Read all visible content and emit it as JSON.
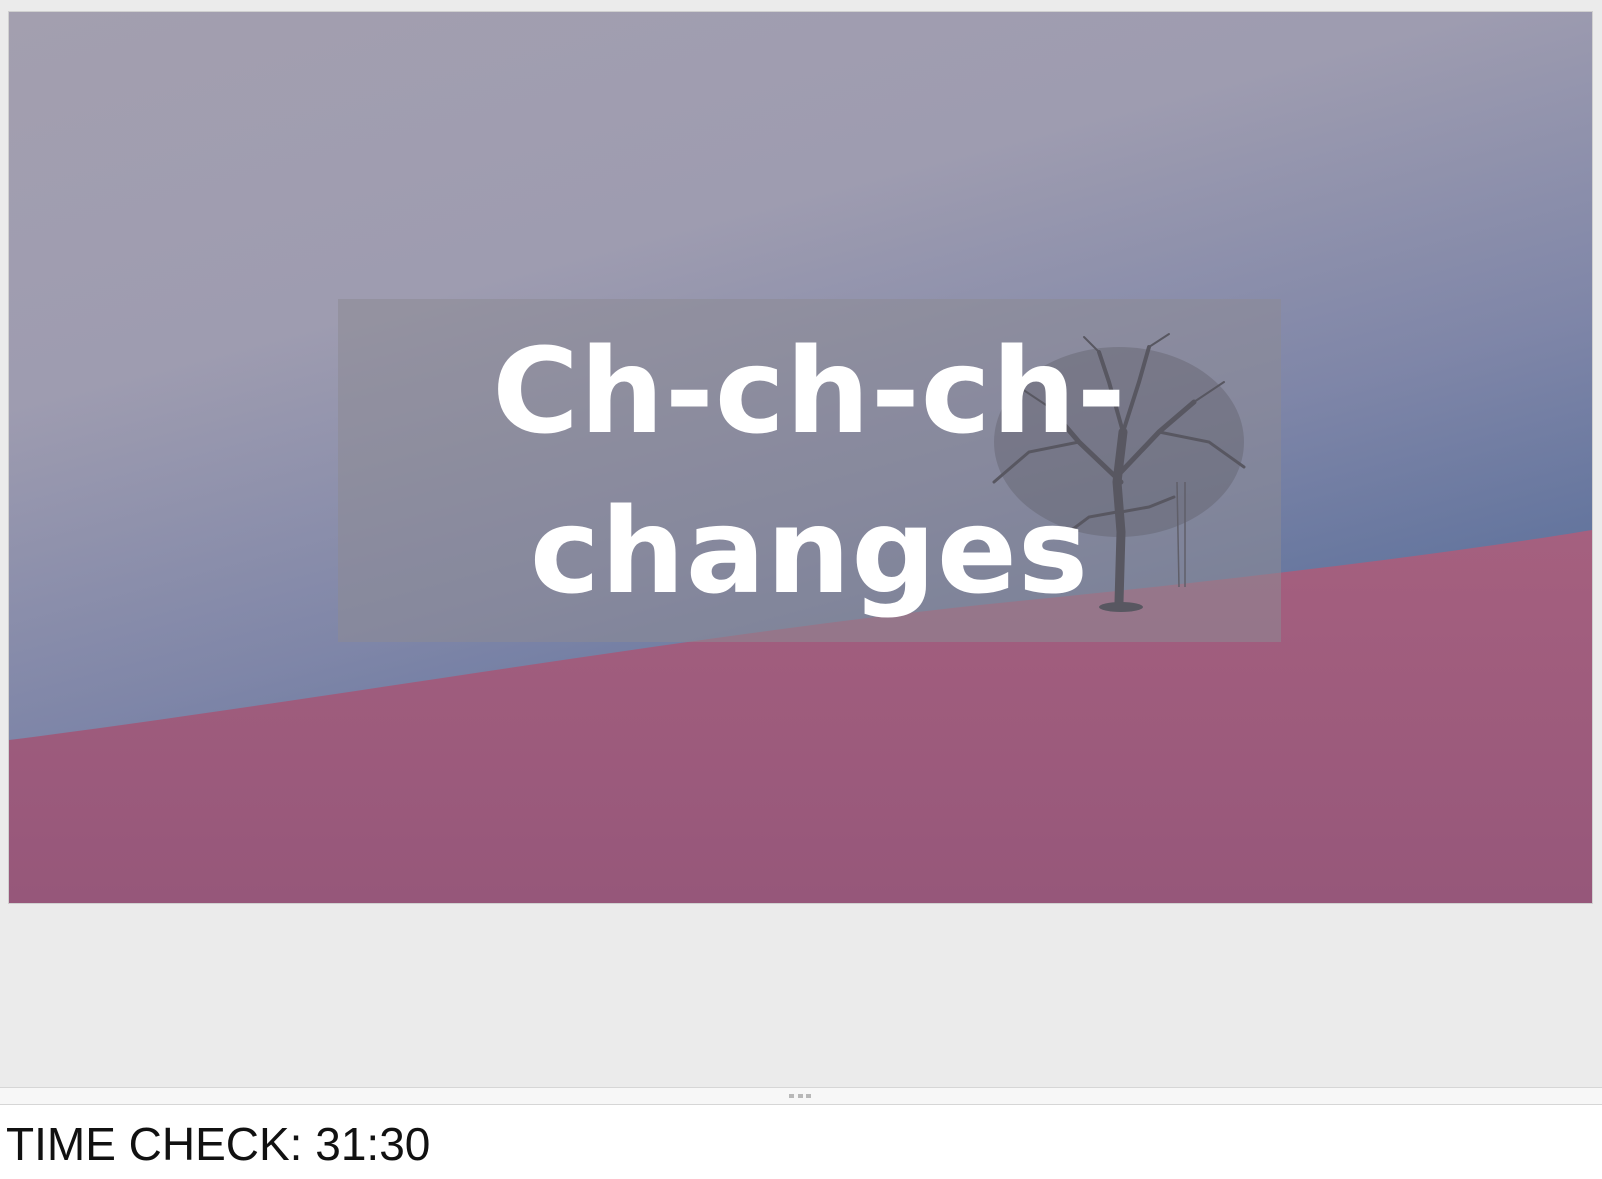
{
  "slide": {
    "title": "Ch-ch-ch-\nchanges"
  },
  "notes": {
    "text": "TIME CHECK: 31:30"
  },
  "colors": {
    "sky_top": "#3f5b8c",
    "sky_haze": "#a39faf",
    "field": "#9a5b7a",
    "title_text": "#ffffff",
    "canvas_bg": "#ebebeb"
  },
  "icons": {
    "resize_grip": "drag-handle-icon"
  }
}
